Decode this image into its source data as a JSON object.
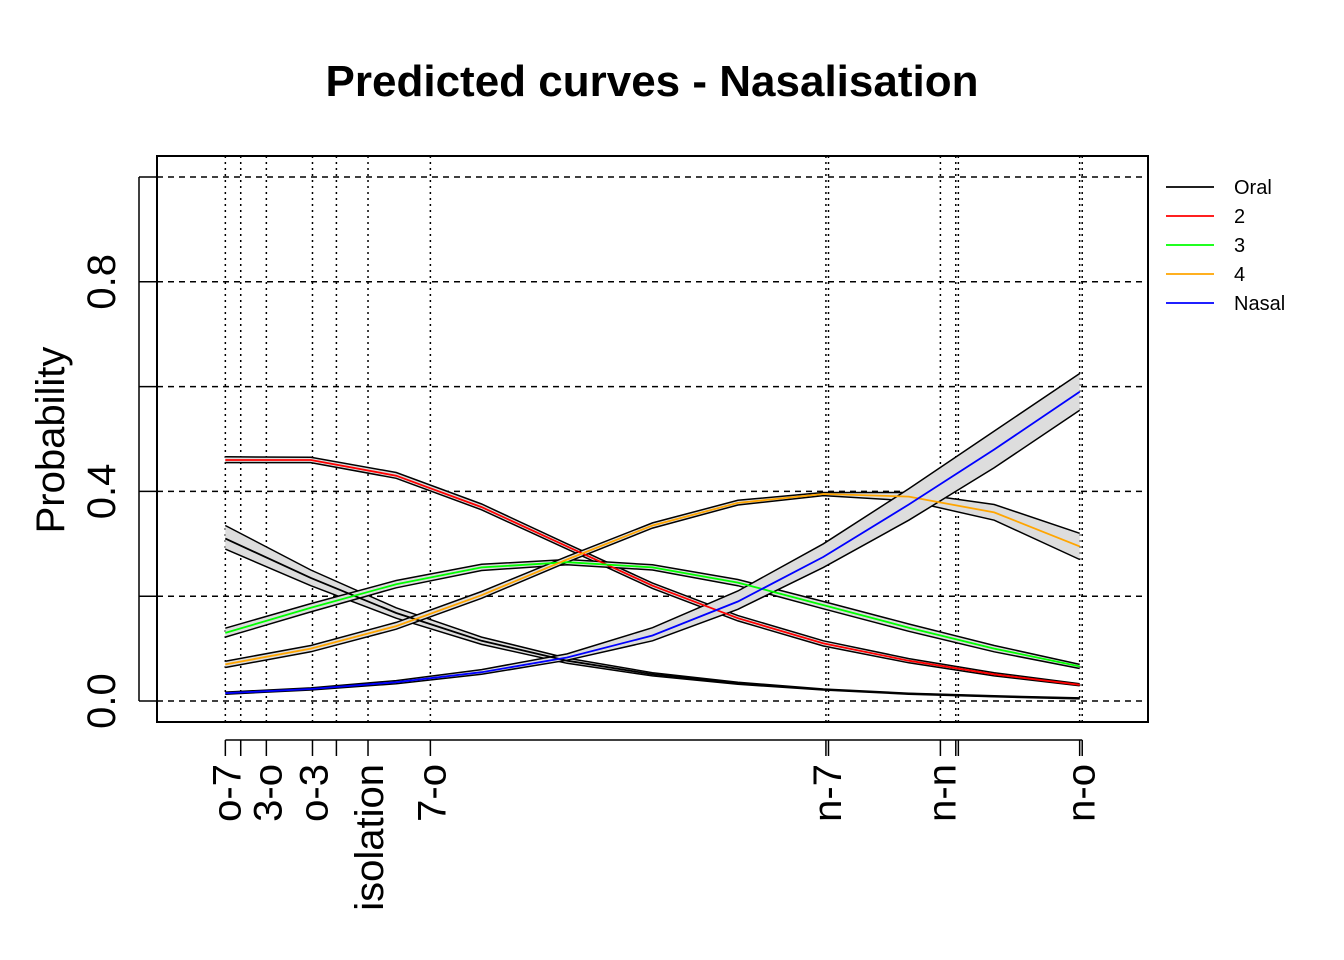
{
  "chart_data": {
    "type": "line",
    "title": "Predicted curves - Nasalisation",
    "ylabel": "Probability",
    "xlabel": "",
    "ylim": [
      -0.04,
      1.04
    ],
    "xlim": [
      -0.08,
      1.08
    ],
    "yticks": [
      0.0,
      0.2,
      0.4,
      0.6,
      0.8,
      1.0
    ],
    "ytick_labels": [
      "0.0",
      "",
      "0.4",
      "",
      "0.8",
      ""
    ],
    "grid": true,
    "legend_position": "top-right",
    "x_markers": [
      {
        "x": 0.0,
        "label": "o-7"
      },
      {
        "x": 0.018,
        "label": ""
      },
      {
        "x": 0.048,
        "label": "3-o"
      },
      {
        "x": 0.102,
        "label": "o-3"
      },
      {
        "x": 0.13,
        "label": ""
      },
      {
        "x": 0.167,
        "label": "isolation"
      },
      {
        "x": 0.24,
        "label": "7-o"
      },
      {
        "x": 0.703,
        "label": "n-7"
      },
      {
        "x": 0.706,
        "label": ""
      },
      {
        "x": 0.837,
        "label": "n-n"
      },
      {
        "x": 0.855,
        "label": ""
      },
      {
        "x": 0.858,
        "label": ""
      },
      {
        "x": 1.0,
        "label": "n-o"
      },
      {
        "x": 1.003,
        "label": ""
      }
    ],
    "band_color": "#dddddd",
    "band_edge_color": "#000000",
    "series": [
      {
        "name": "Oral",
        "color": "#000000",
        "x": [
          0.0,
          0.1,
          0.2,
          0.3,
          0.4,
          0.5,
          0.6,
          0.7,
          0.8,
          0.9,
          1.0
        ],
        "y": [
          0.31,
          0.235,
          0.168,
          0.115,
          0.077,
          0.051,
          0.034,
          0.022,
          0.014,
          0.009,
          0.005
        ],
        "lower": [
          0.29,
          0.22,
          0.158,
          0.108,
          0.072,
          0.048,
          0.032,
          0.021,
          0.013,
          0.008,
          0.004
        ],
        "upper": [
          0.335,
          0.25,
          0.178,
          0.122,
          0.082,
          0.054,
          0.036,
          0.023,
          0.015,
          0.01,
          0.006
        ]
      },
      {
        "name": "2",
        "color": "#ff0000",
        "x": [
          0.0,
          0.1,
          0.2,
          0.3,
          0.4,
          0.5,
          0.6,
          0.7,
          0.8,
          0.9,
          1.0
        ],
        "y": [
          0.46,
          0.46,
          0.43,
          0.37,
          0.295,
          0.22,
          0.158,
          0.11,
          0.077,
          0.051,
          0.031
        ],
        "lower": [
          0.455,
          0.455,
          0.425,
          0.365,
          0.29,
          0.215,
          0.153,
          0.105,
          0.073,
          0.048,
          0.029
        ],
        "upper": [
          0.466,
          0.465,
          0.436,
          0.376,
          0.3,
          0.225,
          0.163,
          0.115,
          0.081,
          0.054,
          0.033
        ]
      },
      {
        "name": "3",
        "color": "#00ff00",
        "x": [
          0.0,
          0.1,
          0.2,
          0.3,
          0.4,
          0.5,
          0.6,
          0.7,
          0.8,
          0.9,
          1.0
        ],
        "y": [
          0.13,
          0.178,
          0.223,
          0.255,
          0.265,
          0.255,
          0.226,
          0.183,
          0.14,
          0.1,
          0.066
        ],
        "lower": [
          0.122,
          0.17,
          0.216,
          0.249,
          0.26,
          0.25,
          0.22,
          0.176,
          0.133,
          0.094,
          0.062
        ],
        "upper": [
          0.139,
          0.186,
          0.23,
          0.261,
          0.27,
          0.26,
          0.232,
          0.19,
          0.147,
          0.106,
          0.07
        ]
      },
      {
        "name": "4",
        "color": "#ffa500",
        "x": [
          0.0,
          0.1,
          0.2,
          0.3,
          0.4,
          0.5,
          0.6,
          0.7,
          0.8,
          0.9,
          1.0
        ],
        "y": [
          0.07,
          0.1,
          0.143,
          0.202,
          0.27,
          0.335,
          0.378,
          0.395,
          0.39,
          0.36,
          0.295
        ],
        "lower": [
          0.064,
          0.094,
          0.137,
          0.196,
          0.265,
          0.33,
          0.374,
          0.392,
          0.382,
          0.345,
          0.27
        ],
        "upper": [
          0.076,
          0.106,
          0.15,
          0.209,
          0.276,
          0.34,
          0.383,
          0.398,
          0.398,
          0.375,
          0.32
        ]
      },
      {
        "name": "Nasal",
        "color": "#0000ff",
        "x": [
          0.0,
          0.1,
          0.2,
          0.3,
          0.4,
          0.5,
          0.6,
          0.7,
          0.8,
          0.9,
          1.0
        ],
        "y": [
          0.015,
          0.023,
          0.036,
          0.055,
          0.083,
          0.125,
          0.19,
          0.275,
          0.375,
          0.48,
          0.59
        ],
        "lower": [
          0.013,
          0.021,
          0.033,
          0.051,
          0.078,
          0.115,
          0.175,
          0.255,
          0.345,
          0.445,
          0.555
        ],
        "upper": [
          0.017,
          0.025,
          0.039,
          0.06,
          0.09,
          0.14,
          0.21,
          0.3,
          0.405,
          0.515,
          0.625
        ]
      }
    ]
  }
}
